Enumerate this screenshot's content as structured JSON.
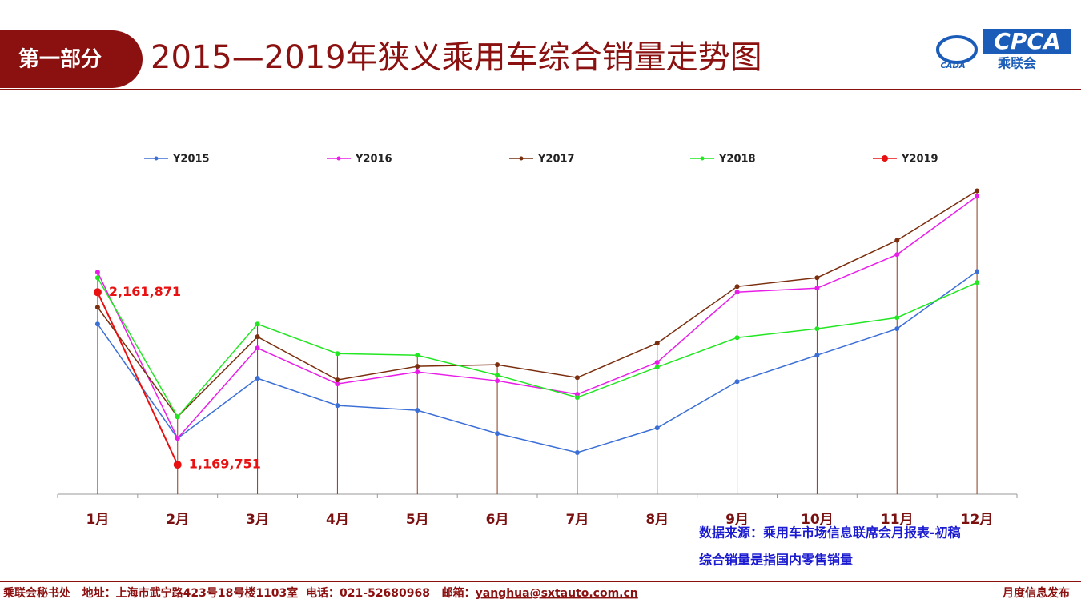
{
  "header": {
    "section": "第一部分",
    "title": "2015—2019年狭义乘用车综合销量走势图",
    "logo_main": "CPCA",
    "logo_sub": "乘联会",
    "logo_left": "CADA"
  },
  "chart_data": {
    "type": "line",
    "categories": [
      "1月",
      "2月",
      "3月",
      "4月",
      "5月",
      "6月",
      "7月",
      "8月",
      "9月",
      "10月",
      "11月",
      "12月"
    ],
    "series": [
      {
        "name": "Y2015",
        "color": "#3b6fd6",
        "values": [
          1978000,
          1321000,
          1666000,
          1510000,
          1482000,
          1349000,
          1239000,
          1381000,
          1647000,
          1799000,
          1951000,
          2281000
        ]
      },
      {
        "name": "Y2016",
        "color": "#e81ee8",
        "values": [
          2277000,
          1321000,
          1840000,
          1634000,
          1703000,
          1652000,
          1574000,
          1758000,
          2162000,
          2185000,
          2378000,
          2713000
        ]
      },
      {
        "name": "Y2017",
        "color": "#7a2e0e",
        "values": [
          2075000,
          1445000,
          1905000,
          1657000,
          1735000,
          1744000,
          1670000,
          1868000,
          2194000,
          2245000,
          2460000,
          2745000
        ]
      },
      {
        "name": "Y2018",
        "color": "#22e622",
        "values": [
          2245000,
          1445000,
          1978000,
          1808000,
          1799000,
          1684000,
          1556000,
          1730000,
          1900000,
          1951000,
          2015000,
          2217000
        ]
      },
      {
        "name": "Y2019",
        "color": "#e81010",
        "values": [
          2161871,
          1169751,
          null,
          null,
          null,
          null,
          null,
          null,
          null,
          null,
          null,
          null
        ],
        "value_labels": [
          "2,161,871",
          "1,169,751",
          null,
          null,
          null,
          null,
          null,
          null,
          null,
          null,
          null,
          null
        ]
      }
    ],
    "ylim": [
      1000000,
      3000000
    ],
    "drop_lines": true,
    "legend": "top"
  },
  "notes": [
    "数据来源：乘用车市场信息联席会月报表-初稿",
    "综合销量是指国内零售销量"
  ],
  "footer": {
    "left": "乘联会秘书处   地址：上海市武宁路423号18号楼1103室  电话：021-52680968   邮箱：",
    "email": "yanghua@sxtauto.com.cn",
    "right": "月度信息发布"
  }
}
